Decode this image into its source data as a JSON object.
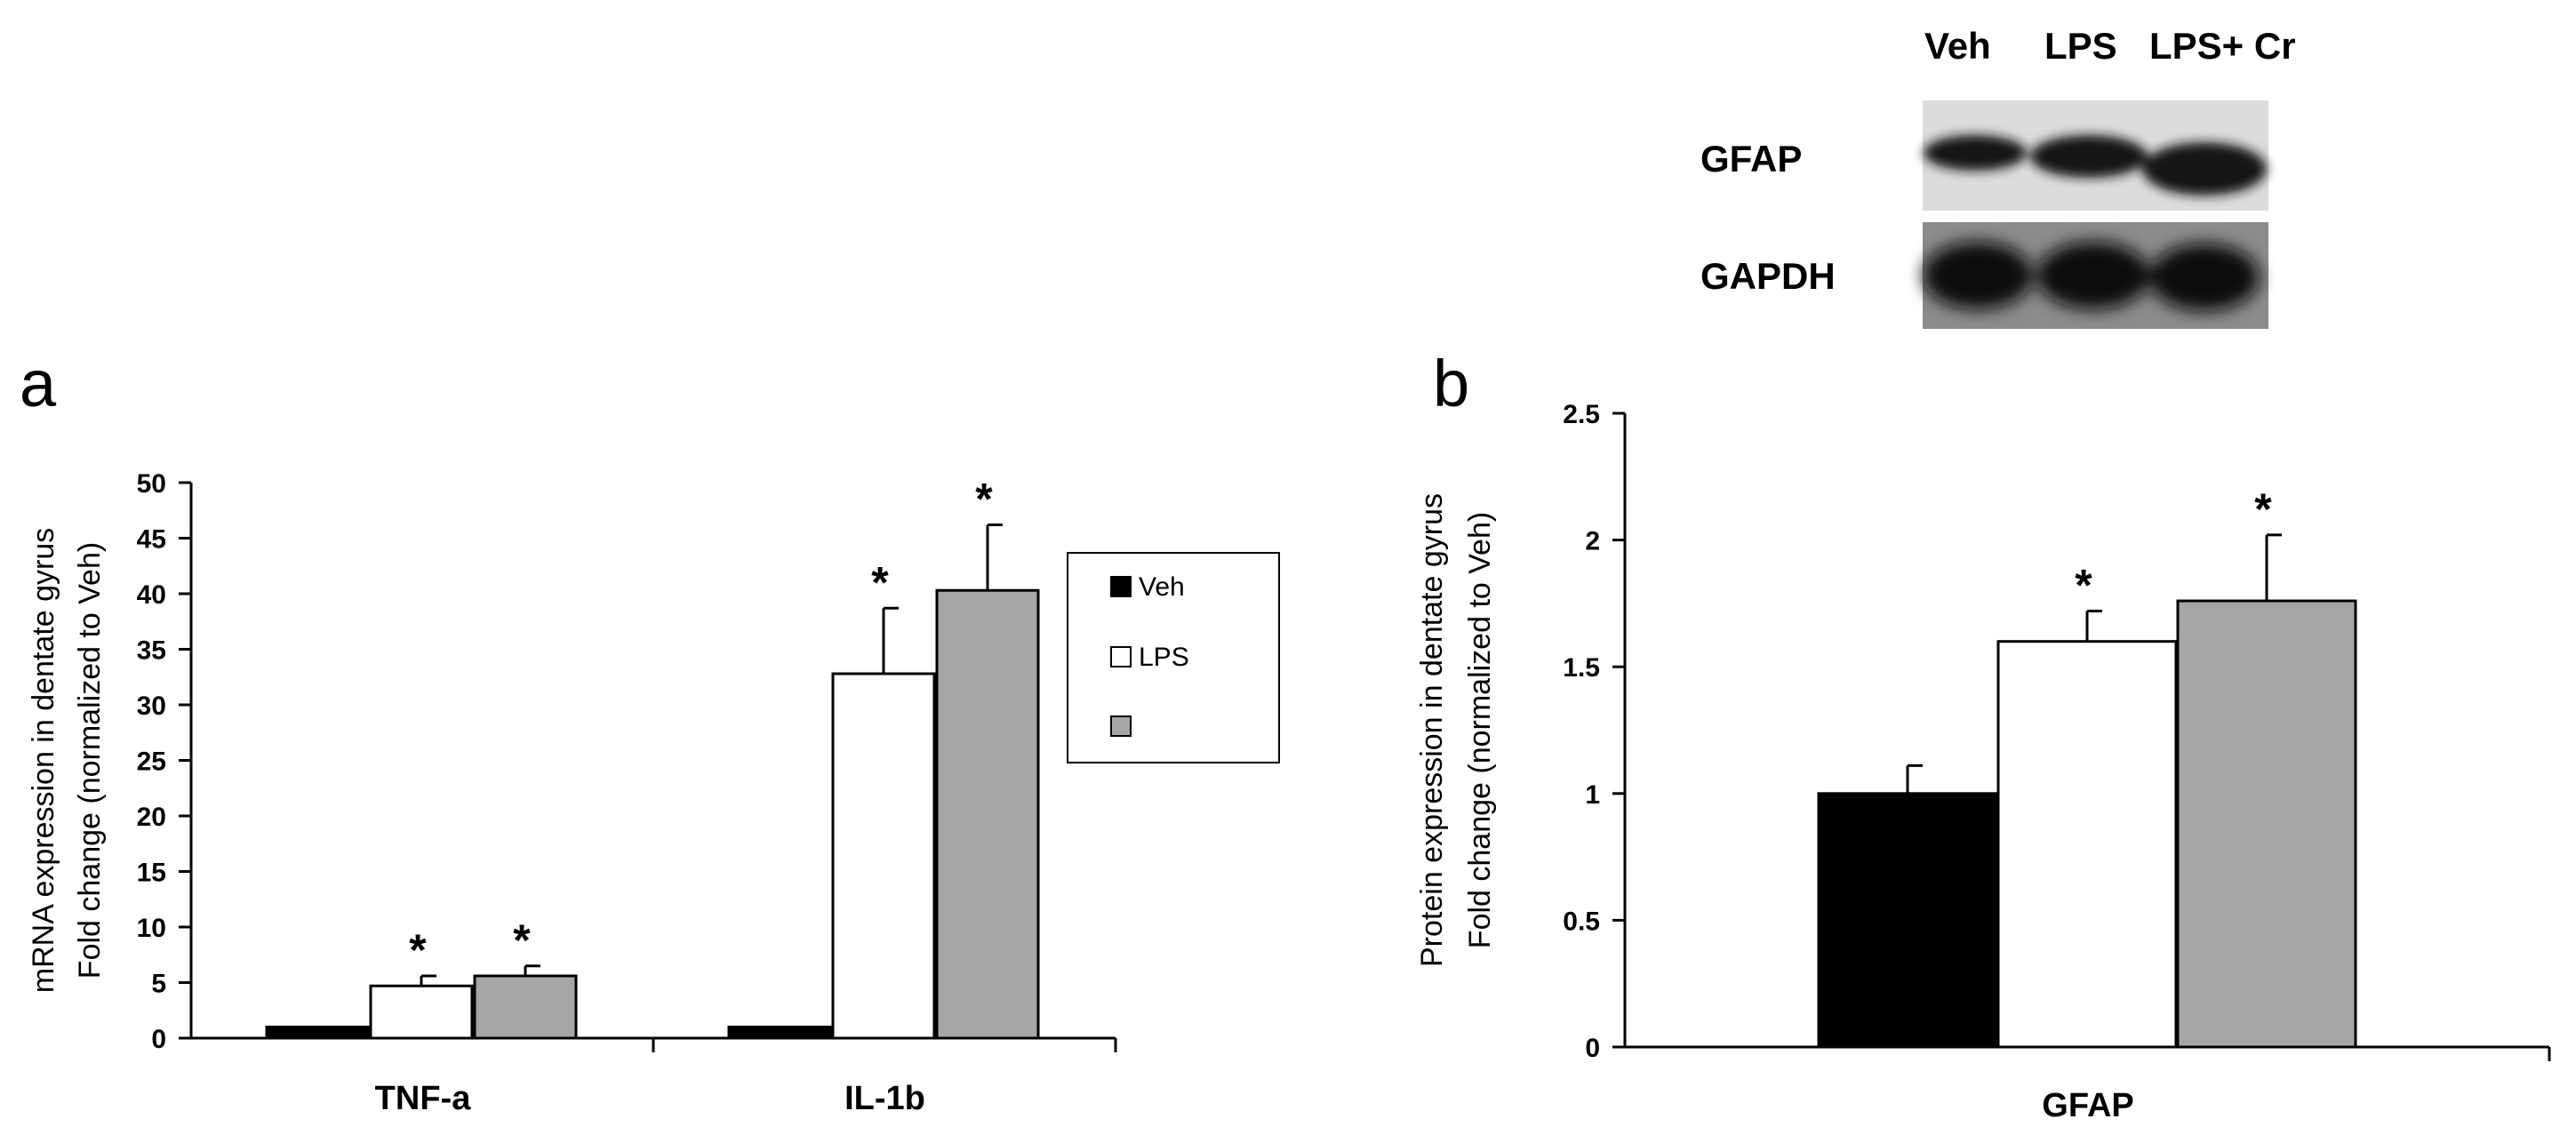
{
  "blot": {
    "lanes": [
      "Veh",
      "LPS",
      "LPS+ Cr"
    ],
    "rows": [
      "GFAP",
      "GAPDH"
    ]
  },
  "chart_data": [
    {
      "panel": "a",
      "type": "bar",
      "categories": [
        "TNF-a",
        "IL-1b"
      ],
      "series": [
        {
          "name": "Veh",
          "color": "#000000",
          "values": [
            1,
            1
          ],
          "errors": [
            0,
            0
          ],
          "significant": [
            false,
            false
          ]
        },
        {
          "name": "LPS",
          "color": "#ffffff",
          "values": [
            4.7,
            32.8
          ],
          "errors": [
            0.9,
            5.9
          ],
          "significant": [
            true,
            true
          ]
        },
        {
          "name": "LPS+Cr",
          "color": "#a6a6a6",
          "values": [
            5.6,
            40.3
          ],
          "errors": [
            0.9,
            5.9
          ],
          "significant": [
            true,
            true
          ]
        }
      ],
      "ylabel_lines": [
        "mRNA expression in dentate gyrus",
        "Fold change (normalized to Veh)"
      ],
      "ylim": [
        0,
        50
      ],
      "yticks": [
        "0",
        "5",
        "10",
        "15",
        "20",
        "25",
        "30",
        "35",
        "40",
        "45",
        "50"
      ],
      "significance_marker": "*",
      "legend": "right"
    },
    {
      "panel": "b",
      "type": "bar",
      "categories": [
        "GFAP"
      ],
      "series": [
        {
          "name": "Veh",
          "color": "#000000",
          "values": [
            1.0
          ],
          "errors": [
            0.11
          ],
          "significant": [
            false
          ]
        },
        {
          "name": "LPS",
          "color": "#ffffff",
          "values": [
            1.6
          ],
          "errors": [
            0.12
          ],
          "significant": [
            true
          ]
        },
        {
          "name": "LPS+Cr",
          "color": "#a6a6a6",
          "values": [
            1.76
          ],
          "errors": [
            0.26
          ],
          "significant": [
            true
          ]
        }
      ],
      "ylabel_lines": [
        "Protein expression in dentate gyrus",
        "Fold change (normalized to Veh)"
      ],
      "ylim": [
        0,
        2.5
      ],
      "yticks": [
        "0",
        "0.5",
        "1",
        "1.5",
        "2",
        "2.5"
      ],
      "significance_marker": "*"
    }
  ]
}
